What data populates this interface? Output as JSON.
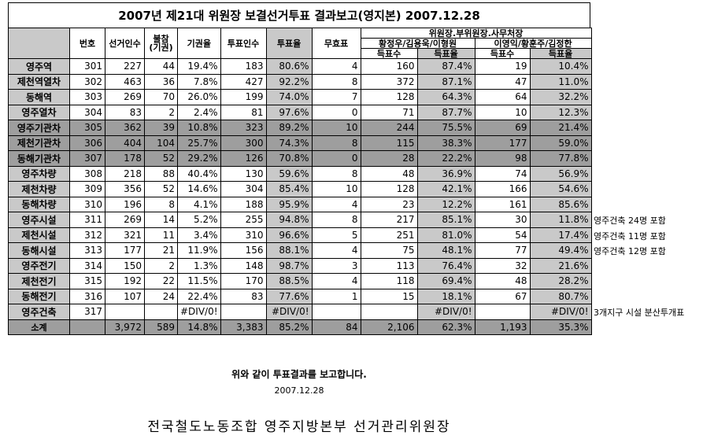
{
  "title": "2007년 제21대 위원장 보결선거투표 결과보고(영지본) 2007.12.28",
  "headers": {
    "no": "번호",
    "voters": "선거인수",
    "absent": "불참 (기권)",
    "abstain_rate": "기권율",
    "votes": "투표인수",
    "turnout": "투표율",
    "invalid": "무효표",
    "group": "위원장.부위원장.사무처장",
    "slate1": "황정우/김용욱/이형원",
    "slate2": "이영익/황훈주/김정한",
    "vote_count": "득표수",
    "vote_rate": "득표율"
  },
  "rows": [
    {
      "name": "영주역",
      "no": "301",
      "voters": "227",
      "absent": "44",
      "abstain": "19.4%",
      "votes": "183",
      "turnout": "80.6%",
      "invalid": "4",
      "s1": "160",
      "s1r": "87.4%",
      "s2": "19",
      "s2r": "10.4%",
      "note": ""
    },
    {
      "name": "제천역열차",
      "no": "302",
      "voters": "463",
      "absent": "36",
      "abstain": "7.8%",
      "votes": "427",
      "turnout": "92.2%",
      "invalid": "8",
      "s1": "372",
      "s1r": "87.1%",
      "s2": "47",
      "s2r": "11.0%",
      "note": ""
    },
    {
      "name": "동해역",
      "no": "303",
      "voters": "269",
      "absent": "70",
      "abstain": "26.0%",
      "votes": "199",
      "turnout": "74.0%",
      "invalid": "7",
      "s1": "128",
      "s1r": "64.3%",
      "s2": "64",
      "s2r": "32.2%",
      "note": ""
    },
    {
      "name": "영주열차",
      "no": "304",
      "voters": "83",
      "absent": "2",
      "abstain": "2.4%",
      "votes": "81",
      "turnout": "97.6%",
      "invalid": "0",
      "s1": "71",
      "s1r": "87.7%",
      "s2": "10",
      "s2r": "12.3%",
      "note": ""
    },
    {
      "name": "영주기관차",
      "no": "305",
      "voters": "362",
      "absent": "39",
      "abstain": "10.8%",
      "votes": "323",
      "turnout": "89.2%",
      "invalid": "10",
      "s1": "244",
      "s1r": "75.5%",
      "s2": "69",
      "s2r": "21.4%",
      "note": ""
    },
    {
      "name": "제천기관차",
      "no": "306",
      "voters": "404",
      "absent": "104",
      "abstain": "25.7%",
      "votes": "300",
      "turnout": "74.3%",
      "invalid": "8",
      "s1": "115",
      "s1r": "38.3%",
      "s2": "177",
      "s2r": "59.0%",
      "note": ""
    },
    {
      "name": "동해기관차",
      "no": "307",
      "voters": "178",
      "absent": "52",
      "abstain": "29.2%",
      "votes": "126",
      "turnout": "70.8%",
      "invalid": "0",
      "s1": "28",
      "s1r": "22.2%",
      "s2": "98",
      "s2r": "77.8%",
      "note": ""
    },
    {
      "name": "영주차량",
      "no": "308",
      "voters": "218",
      "absent": "88",
      "abstain": "40.4%",
      "votes": "130",
      "turnout": "59.6%",
      "invalid": "8",
      "s1": "48",
      "s1r": "36.9%",
      "s2": "74",
      "s2r": "56.9%",
      "note": ""
    },
    {
      "name": "제천차량",
      "no": "309",
      "voters": "356",
      "absent": "52",
      "abstain": "14.6%",
      "votes": "304",
      "turnout": "85.4%",
      "invalid": "10",
      "s1": "128",
      "s1r": "42.1%",
      "s2": "166",
      "s2r": "54.6%",
      "note": ""
    },
    {
      "name": "동해차량",
      "no": "310",
      "voters": "196",
      "absent": "8",
      "abstain": "4.1%",
      "votes": "188",
      "turnout": "95.9%",
      "invalid": "4",
      "s1": "23",
      "s1r": "12.2%",
      "s2": "161",
      "s2r": "85.6%",
      "note": ""
    },
    {
      "name": "영주시설",
      "no": "311",
      "voters": "269",
      "absent": "14",
      "abstain": "5.2%",
      "votes": "255",
      "turnout": "94.8%",
      "invalid": "8",
      "s1": "217",
      "s1r": "85.1%",
      "s2": "30",
      "s2r": "11.8%",
      "note": "영주건축 24명 포함"
    },
    {
      "name": "제천시설",
      "no": "312",
      "voters": "321",
      "absent": "11",
      "abstain": "3.4%",
      "votes": "310",
      "turnout": "96.6%",
      "invalid": "5",
      "s1": "251",
      "s1r": "81.0%",
      "s2": "54",
      "s2r": "17.4%",
      "note": "영주건축 11명 포함"
    },
    {
      "name": "동해시설",
      "no": "313",
      "voters": "177",
      "absent": "21",
      "abstain": "11.9%",
      "votes": "156",
      "turnout": "88.1%",
      "invalid": "4",
      "s1": "75",
      "s1r": "48.1%",
      "s2": "77",
      "s2r": "49.4%",
      "note": "영주건축 12명 포함"
    },
    {
      "name": "영주전기",
      "no": "314",
      "voters": "150",
      "absent": "2",
      "abstain": "1.3%",
      "votes": "148",
      "turnout": "98.7%",
      "invalid": "3",
      "s1": "113",
      "s1r": "76.4%",
      "s2": "32",
      "s2r": "21.6%",
      "note": ""
    },
    {
      "name": "제천전기",
      "no": "315",
      "voters": "192",
      "absent": "22",
      "abstain": "11.5%",
      "votes": "170",
      "turnout": "88.5%",
      "invalid": "4",
      "s1": "118",
      "s1r": "69.4%",
      "s2": "48",
      "s2r": "28.2%",
      "note": ""
    },
    {
      "name": "동해전기",
      "no": "316",
      "voters": "107",
      "absent": "24",
      "abstain": "22.4%",
      "votes": "83",
      "turnout": "77.6%",
      "invalid": "1",
      "s1": "15",
      "s1r": "18.1%",
      "s2": "67",
      "s2r": "80.7%",
      "note": ""
    },
    {
      "name": "영주건축",
      "no": "317",
      "voters": "",
      "absent": "",
      "abstain": "#DIV/0!",
      "votes": "",
      "turnout": "#DIV/0!",
      "invalid": "",
      "s1": "",
      "s1r": "#DIV/0!",
      "s2": "",
      "s2r": "#DIV/0!",
      "note": "3개지구 시설 분산투개표"
    },
    {
      "name": "소계",
      "no": "",
      "voters": "3,972",
      "absent": "589",
      "abstain": "14.8%",
      "votes": "3,383",
      "turnout": "85.2%",
      "invalid": "84",
      "s1": "2,106",
      "s1r": "62.3%",
      "s2": "1,193",
      "s2r": "35.3%",
      "note": ""
    }
  ],
  "report_text": "위와 같이 투표결과를 보고합니다.",
  "report_date": "2007.12.28",
  "signature": "전국철도노동조합 영주지방본부 선거관리위원장",
  "colors": {
    "shade_light": "#c9c9c9",
    "shade_dark": "#9e9e9e"
  }
}
